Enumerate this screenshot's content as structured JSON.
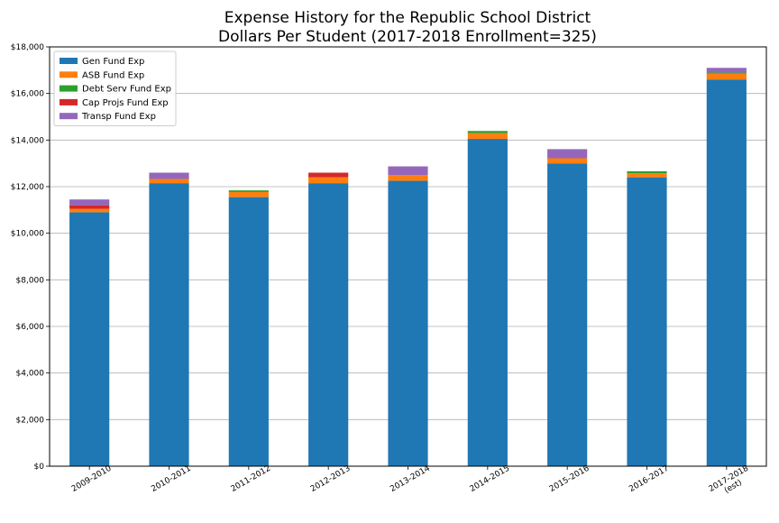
{
  "chart_data": {
    "type": "bar",
    "stacked": true,
    "title": "Expense History for the Republic School District",
    "subtitle": "Dollars Per Student (2017-2018 Enrollment=325)",
    "xlabel": "",
    "ylabel": "",
    "ylim": [
      0,
      18000
    ],
    "yticks": [
      0,
      2000,
      4000,
      6000,
      8000,
      10000,
      12000,
      14000,
      16000,
      18000
    ],
    "ytick_labels": [
      "$0",
      "$2,000",
      "$4,000",
      "$6,000",
      "$8,000",
      "$10,000",
      "$12,000",
      "$14,000",
      "$16,000",
      "$18,000"
    ],
    "grid": "horizontal",
    "legend_position": "top-left",
    "categories": [
      "2009-2010",
      "2010-2011",
      "2011-2012",
      "2012-2013",
      "2013-2014",
      "2014-2015",
      "2015-2016",
      "2016-2017",
      "2017-2018\n(est)"
    ],
    "series": [
      {
        "name": "Gen Fund Exp",
        "color": "#1f77b4",
        "values": [
          10900,
          12150,
          11550,
          12150,
          12250,
          14050,
          13000,
          12400,
          16600
        ]
      },
      {
        "name": "ASB Fund Exp",
        "color": "#ff7f0e",
        "values": [
          150,
          180,
          220,
          250,
          250,
          250,
          220,
          170,
          250
        ]
      },
      {
        "name": "Debt Serv Fund Exp",
        "color": "#2ca02c",
        "values": [
          0,
          0,
          70,
          0,
          0,
          90,
          0,
          90,
          50
        ]
      },
      {
        "name": "Cap Projs Fund Exp",
        "color": "#d62728",
        "values": [
          150,
          0,
          0,
          200,
          0,
          0,
          0,
          0,
          0
        ]
      },
      {
        "name": "Transp Fund Exp",
        "color": "#9467bd",
        "values": [
          250,
          270,
          0,
          0,
          370,
          0,
          390,
          0,
          200
        ]
      }
    ]
  }
}
